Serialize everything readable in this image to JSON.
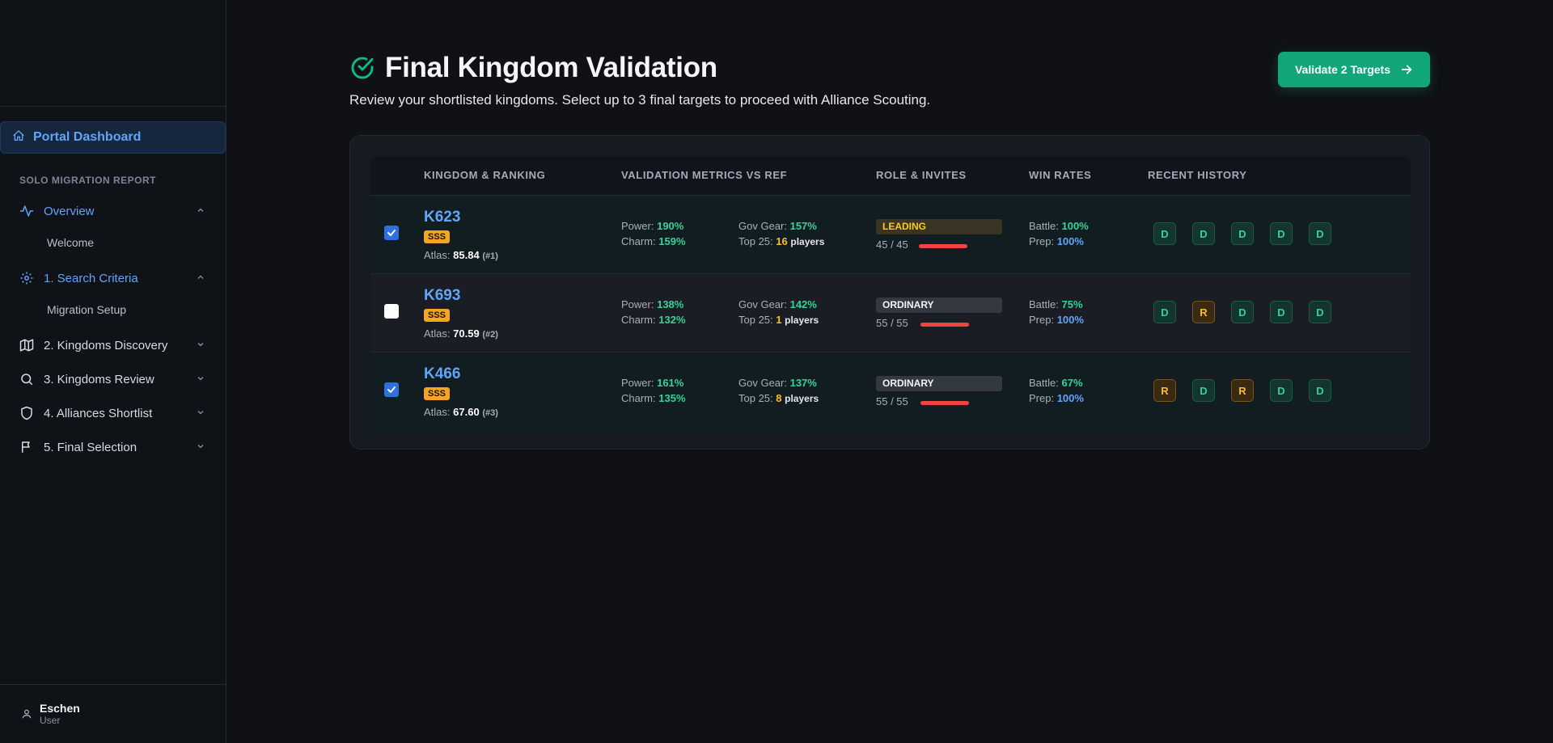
{
  "sidebar": {
    "portal_label": "Portal Dashboard",
    "section_label": "SOLO MIGRATION REPORT",
    "items": [
      {
        "label": "Overview",
        "sub": "Welcome"
      },
      {
        "label": "1. Search Criteria",
        "sub": "Migration Setup"
      },
      {
        "label": "2. Kingdoms Discovery"
      },
      {
        "label": "3. Kingdoms Review"
      },
      {
        "label": "4. Alliances Shortlist"
      },
      {
        "label": "5. Final Selection"
      }
    ],
    "user": {
      "name": "Eschen",
      "role": "User"
    }
  },
  "header": {
    "title": "Final Kingdom Validation",
    "subtitle": "Review your shortlisted kingdoms. Select up to 3 final targets to proceed with Alliance Scouting.",
    "cta_label": "Validate 2 Targets"
  },
  "table": {
    "columns": [
      "KINGDOM & RANKING",
      "VALIDATION METRICS VS REF",
      "ROLE & INVITES",
      "WIN RATES",
      "RECENT HISTORY"
    ],
    "rows": [
      {
        "selected": true,
        "kingdom": "K623",
        "tier": "SSS",
        "atlas_label": "Atlas:",
        "atlas": "85.84",
        "rank": "(#1)",
        "power": "190%",
        "charm": "159%",
        "gov_gear": "157%",
        "top25": "16",
        "players": "players",
        "role": "LEADING",
        "invites": "45 / 45",
        "battle": "100%",
        "prep": "100%",
        "history": [
          "D",
          "D",
          "D",
          "D",
          "D"
        ]
      },
      {
        "selected": false,
        "kingdom": "K693",
        "tier": "SSS",
        "atlas_label": "Atlas:",
        "atlas": "70.59",
        "rank": "(#2)",
        "power": "138%",
        "charm": "132%",
        "gov_gear": "142%",
        "top25": "1",
        "players": "players",
        "role": "ORDINARY",
        "invites": "55 / 55",
        "battle": "75%",
        "prep": "100%",
        "history": [
          "D",
          "R",
          "D",
          "D",
          "D"
        ]
      },
      {
        "selected": true,
        "kingdom": "K466",
        "tier": "SSS",
        "atlas_label": "Atlas:",
        "atlas": "67.60",
        "rank": "(#3)",
        "power": "161%",
        "charm": "135%",
        "gov_gear": "137%",
        "top25": "8",
        "players": "players",
        "role": "ORDINARY",
        "invites": "55 / 55",
        "battle": "67%",
        "prep": "100%",
        "history": [
          "R",
          "D",
          "R",
          "D",
          "D"
        ]
      }
    ],
    "labels": {
      "power": "Power:",
      "charm": "Charm:",
      "gov_gear": "Gov Gear:",
      "top25": "Top 25:",
      "battle": "Battle:",
      "prep": "Prep:"
    }
  },
  "colors": {
    "accent": "#60a5fa",
    "success": "#10a679",
    "warning": "#f5a524",
    "danger": "#ef4444"
  }
}
